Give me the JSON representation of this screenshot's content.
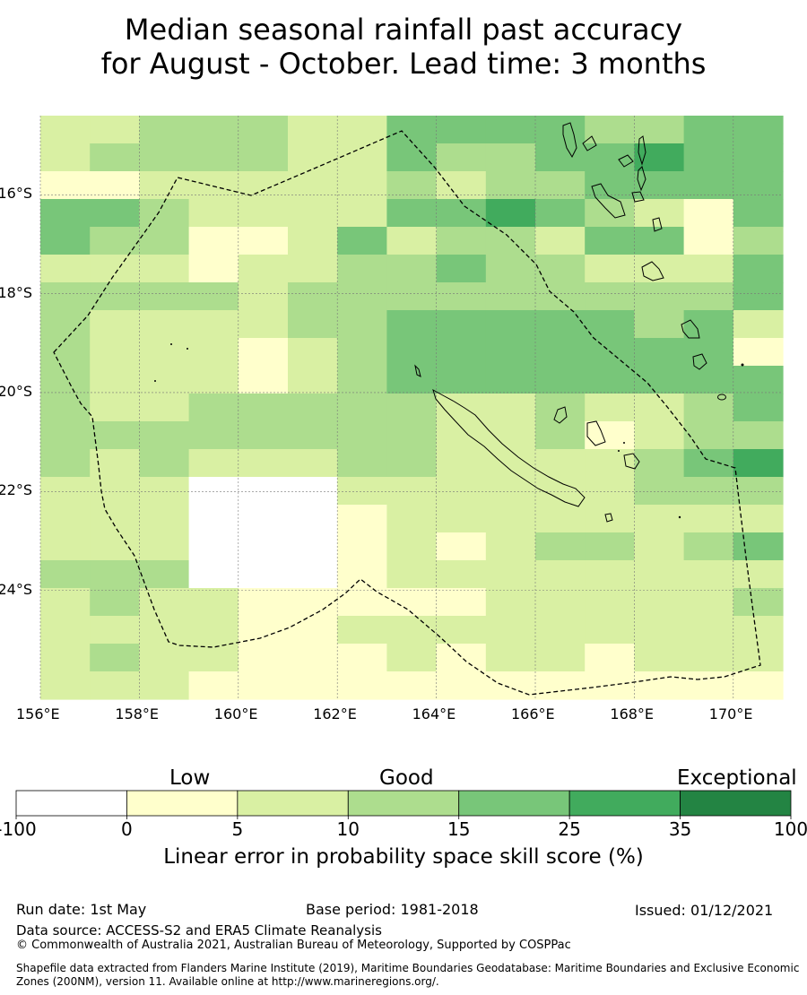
{
  "title": {
    "line1": "Median seasonal rainfall past accuracy",
    "line2": "for August - October. Lead time: 3 months"
  },
  "map": {
    "lon_range": [
      156,
      171
    ],
    "lat_range": [
      -26.2,
      -14.4
    ],
    "lat_ticks": [
      "16°S",
      "18°S",
      "20°S",
      "22°S",
      "24°S"
    ],
    "lon_ticks": [
      "156°E",
      "158°E",
      "160°E",
      "162°E",
      "164°E",
      "166°E",
      "168°E",
      "170°E"
    ],
    "grid": true,
    "boundary": "dashed",
    "skill_grid_cols": 15,
    "skill_grid_rows": 21,
    "skill_grid_rows_data": [
      "223332244443344",
      "233332243344544",
      "112222232334444",
      "443222244543214",
      "433112423324413",
      "222122334332224",
      "333323333333334",
      "322223344444342",
      "322212344444441",
      "322212344444444",
      "322333332232234",
      "333333332231233",
      "323222332222345",
      "222000222222333",
      "222000122222222",
      "222000121233234",
      "333000122222222",
      "232211111222223",
      "222211222222222",
      "232211121221222",
      "222111111111111"
    ],
    "skill_colors": [
      "#ffffff",
      "#ffffcc",
      "#d9f0a3",
      "#addd8e",
      "#78c679",
      "#41ab5d",
      "#238443"
    ]
  },
  "colorbar": {
    "categories": [
      "Low",
      "Good",
      "Exceptional"
    ],
    "ticks": [
      "-100",
      "0",
      "5",
      "10",
      "15",
      "25",
      "35",
      "100"
    ],
    "colors": [
      "#ffffff",
      "#ffffcc",
      "#d9f0a3",
      "#addd8e",
      "#78c679",
      "#41ab5d",
      "#238443"
    ],
    "label": "Linear error in probability space skill score (%)"
  },
  "footer": {
    "run_date": "Run date: 1st May",
    "base_period": "Base period: 1981-2018",
    "issued": "Issued: 01/12/2021",
    "data_source": "Data source: ACCESS-S2 and ERA5 Climate Reanalysis",
    "copyright": "© Commonwealth of Australia 2021, Australian Bureau of Meteorology, Supported by COSPPac",
    "shapefile": "Shapefile data extracted from Flanders Marine Institute (2019), Maritime Boundaries Geodatabase: Maritime Boundaries and Exclusive Economic Zones (200NM), version 11. Available online at http://www.marineregions.org/."
  }
}
